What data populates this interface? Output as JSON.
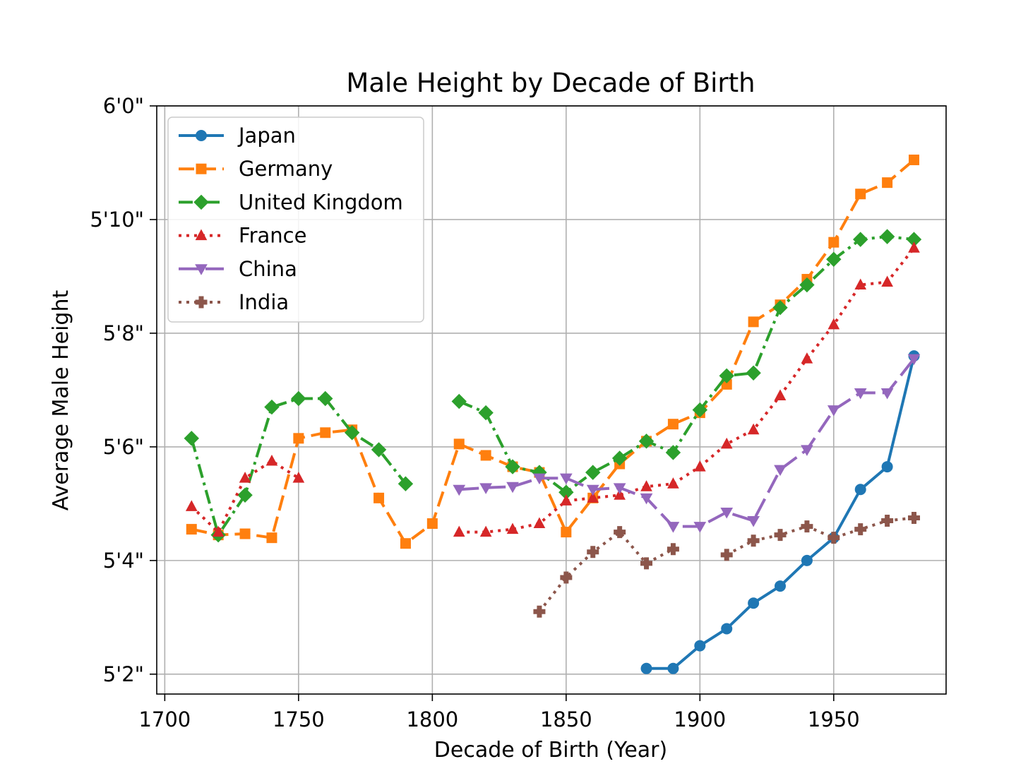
{
  "chart_data": {
    "type": "line",
    "title": "Male Height by Decade of Birth",
    "xlabel": "Decade of Birth (Year)",
    "ylabel": "Average Male Height",
    "xlim": [
      1697,
      1992
    ],
    "ylim": [
      61.65,
      72.0
    ],
    "grid": true,
    "legend_position": "top-left",
    "x_ticks": [
      1700,
      1750,
      1800,
      1850,
      1900,
      1950
    ],
    "x_tick_labels": [
      "1700",
      "1750",
      "1800",
      "1850",
      "1900",
      "1950"
    ],
    "y_ticks": [
      62,
      64,
      66,
      68,
      70,
      72
    ],
    "y_tick_labels": [
      "5'2\"",
      "5'4\"",
      "5'6\"",
      "5'8\"",
      "5'10\"",
      "6'0\""
    ],
    "series": [
      {
        "name": "Japan",
        "color": "#1f77b4",
        "marker": "circle",
        "dash": "solid",
        "x": [
          1880,
          1890,
          1900,
          1910,
          1920,
          1930,
          1940,
          1950,
          1960,
          1970,
          1980
        ],
        "y": [
          62.1,
          62.1,
          62.5,
          62.8,
          63.25,
          63.55,
          64.0,
          64.4,
          65.25,
          65.65,
          67.6
        ]
      },
      {
        "name": "Germany",
        "color": "#ff7f0e",
        "marker": "square",
        "dash": "dashed",
        "x": [
          1710,
          1720,
          1730,
          1740,
          1750,
          1760,
          1770,
          1780,
          1790,
          1800,
          1810,
          1820,
          1830,
          1840,
          1850,
          1860,
          1870,
          1880,
          1890,
          1900,
          1910,
          1920,
          1930,
          1940,
          1950,
          1960,
          1970,
          1980
        ],
        "y": [
          64.55,
          64.45,
          64.47,
          64.4,
          66.15,
          66.25,
          66.3,
          65.1,
          64.3,
          64.65,
          66.05,
          65.85,
          65.65,
          65.55,
          64.5,
          65.1,
          65.7,
          66.1,
          66.4,
          66.6,
          67.1,
          68.2,
          68.5,
          68.95,
          69.6,
          70.45,
          70.65,
          71.05
        ]
      },
      {
        "name": "United Kingdom",
        "color": "#2ca02c",
        "marker": "diamond",
        "dash": "dashdot",
        "x": [
          1710,
          1720,
          1730,
          1740,
          1750,
          1760,
          1770,
          1780,
          1790,
          null,
          1810,
          1820,
          1830,
          1840,
          1850,
          1860,
          1870,
          1880,
          1890,
          1900,
          1910,
          1920,
          1930,
          1940,
          1950,
          1960,
          1970,
          1980
        ],
        "y": [
          66.15,
          64.45,
          65.15,
          66.7,
          66.85,
          66.85,
          66.25,
          65.95,
          65.35,
          null,
          66.8,
          66.6,
          65.65,
          65.55,
          65.2,
          65.55,
          65.8,
          66.1,
          65.9,
          66.65,
          67.25,
          67.3,
          68.45,
          68.85,
          69.3,
          69.65,
          69.7,
          69.65
        ]
      },
      {
        "name": "France",
        "color": "#d62728",
        "marker": "triangle-up",
        "dash": "dotted",
        "x": [
          1710,
          1720,
          1730,
          1740,
          1750,
          null,
          1810,
          1820,
          1830,
          1840,
          1850,
          1860,
          1870,
          1880,
          1890,
          1900,
          1910,
          1920,
          1930,
          1940,
          1950,
          1960,
          1970,
          1980
        ],
        "y": [
          64.95,
          64.5,
          65.45,
          65.75,
          65.45,
          null,
          64.5,
          64.5,
          64.55,
          64.65,
          65.05,
          65.1,
          65.15,
          65.3,
          65.35,
          65.65,
          66.05,
          66.3,
          66.9,
          67.55,
          68.15,
          68.85,
          68.9,
          69.5
        ]
      },
      {
        "name": "China",
        "color": "#9467bd",
        "marker": "triangle-down",
        "dash": "longdash",
        "x": [
          1810,
          1820,
          1830,
          1840,
          1850,
          1860,
          1870,
          1880,
          1890,
          1900,
          1910,
          1920,
          1930,
          1940,
          1950,
          1960,
          1970,
          1980
        ],
        "y": [
          65.25,
          65.28,
          65.3,
          65.45,
          65.45,
          65.25,
          65.28,
          65.1,
          64.6,
          64.6,
          64.85,
          64.7,
          65.6,
          65.95,
          66.65,
          66.95,
          66.95,
          67.55
        ]
      },
      {
        "name": "India",
        "color": "#8c564b",
        "marker": "plus",
        "dash": "dotted",
        "x": [
          1840,
          1850,
          1860,
          1870,
          1880,
          1890,
          null,
          1910,
          1920,
          1930,
          1940,
          1950,
          1960,
          1970,
          1980
        ],
        "y": [
          63.1,
          63.7,
          64.15,
          64.5,
          63.95,
          64.2,
          null,
          64.1,
          64.35,
          64.45,
          64.6,
          64.4,
          64.55,
          64.7,
          64.75
        ]
      }
    ]
  }
}
